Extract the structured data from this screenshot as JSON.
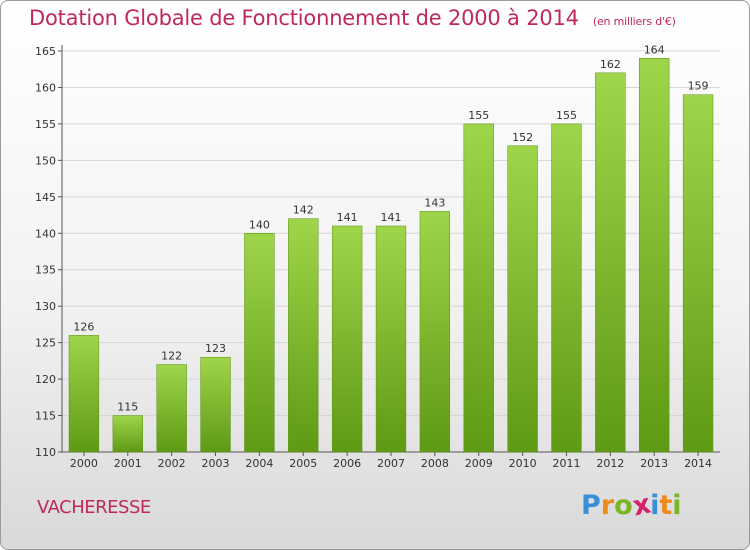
{
  "title": "Dotation Globale de Fonctionnement de 2000 à 2014",
  "unit": "(en milliers d'€)",
  "commune": "VACHERESSE",
  "logo": {
    "letters": [
      "P",
      "r",
      "o",
      "x",
      "i",
      "t",
      "i"
    ],
    "colors": [
      "#3a8fd6",
      "#f08a1c",
      "#79b623",
      "#d8236b",
      "#3a8fd6",
      "#f08a1c",
      "#79b623"
    ]
  },
  "chart_data": {
    "type": "bar",
    "categories": [
      "2000",
      "2001",
      "2002",
      "2003",
      "2004",
      "2005",
      "2006",
      "2007",
      "2008",
      "2009",
      "2010",
      "2011",
      "2012",
      "2013",
      "2014"
    ],
    "values": [
      126,
      115,
      122,
      123,
      140,
      142,
      141,
      141,
      143,
      155,
      152,
      155,
      162,
      164,
      159
    ],
    "data_labels": [
      "126",
      "115",
      "122",
      "123",
      "140",
      "142",
      "141",
      "141",
      "143",
      "155",
      "152",
      "155",
      "162",
      "164",
      "159"
    ],
    "ylim": [
      110,
      165
    ],
    "yticks": [
      "110",
      "115",
      "120",
      "125",
      "130",
      "135",
      "140",
      "145",
      "150",
      "155",
      "160",
      "165"
    ],
    "grid": true,
    "bar_color": "#7fbf2a"
  }
}
